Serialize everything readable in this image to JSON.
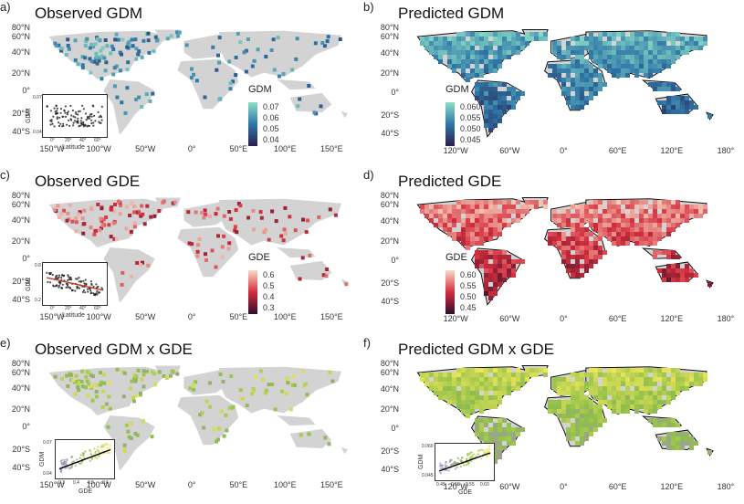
{
  "colors": {
    "land": "#d3d3d3",
    "gdm_low": "#2a1f4a",
    "gdm_mid": "#2f76a8",
    "gdm_high": "#8de0c7",
    "gde_low": "#2c0f2e",
    "gde_mid": "#d42d3c",
    "gde_high": "#f9d9c6",
    "biv_a": "#f2e85b",
    "biv_b": "#8fbf4a",
    "biv_c": "#a78acd",
    "outline": "#111111"
  },
  "panels": [
    {
      "label": "a)",
      "title": "Observed GDM",
      "kind": "observed",
      "palette": "gdm",
      "lat_labels": [
        "80°N",
        "60°N",
        "40°N",
        "20°N",
        "0°",
        "20°S",
        "40°S"
      ],
      "lon_labels": [
        "150°W",
        "100°W",
        "50°W",
        "0°",
        "50°E",
        "100°E",
        "150°E"
      ],
      "legend": {
        "title": "GDM",
        "ticks": [
          "0.07",
          "0.06",
          "0.05",
          "0.04"
        ]
      },
      "inset": {
        "xlabel": "Latitude",
        "ylabel": "GDM",
        "xticks": [
          "0°",
          "20°",
          "40°",
          "60°"
        ],
        "yticks": [
          "0.07",
          "0.06",
          "0.05",
          "0.04"
        ]
      }
    },
    {
      "label": "b)",
      "title": "Predicted GDM",
      "kind": "predicted",
      "palette": "gdm",
      "lat_labels": [
        "80°N",
        "60°N",
        "40°N",
        "20°N",
        "0°",
        "20°S",
        "40°S"
      ],
      "lon_labels": [
        "120°W",
        "60°W",
        "0°",
        "60°E",
        "120°E",
        "180°"
      ],
      "legend": {
        "title": "GDM",
        "ticks": [
          "0.060",
          "0.055",
          "0.050",
          "0.045"
        ]
      }
    },
    {
      "label": "c)",
      "title": "Observed GDE",
      "kind": "observed",
      "palette": "gde",
      "lat_labels": [
        "80°N",
        "60°N",
        "40°N",
        "20°N",
        "0°",
        "20°S",
        "40°S"
      ],
      "lon_labels": [
        "150°W",
        "100°W",
        "50°W",
        "0°",
        "50°E",
        "100°E",
        "150°E"
      ],
      "legend": {
        "title": "GDE",
        "ticks": [
          "0.6",
          "0.5",
          "0.4",
          "0.3"
        ]
      },
      "inset": {
        "xlabel": "Latitude",
        "ylabel": "GDE",
        "xticks": [
          "0°",
          "20°",
          "40°",
          "60°"
        ],
        "yticks": [
          "0.8",
          "0.6",
          "0.4",
          "0.2"
        ]
      }
    },
    {
      "label": "d)",
      "title": "Predicted GDE",
      "kind": "predicted",
      "palette": "gde",
      "lat_labels": [
        "80°N",
        "60°N",
        "40°N",
        "20°N",
        "0°",
        "20°S",
        "40°S"
      ],
      "lon_labels": [
        "120°W",
        "60°W",
        "0°",
        "60°E",
        "120°E",
        "180°"
      ],
      "legend": {
        "title": "GDE",
        "ticks": [
          "0.60",
          "0.55",
          "0.50",
          "0.45"
        ]
      }
    },
    {
      "label": "e)",
      "title": "Observed GDM x GDE",
      "kind": "observed",
      "palette": "biv",
      "lat_labels": [
        "80°N",
        "60°N",
        "40°N",
        "20°N",
        "0°",
        "20°S",
        "40°S"
      ],
      "lon_labels": [
        "150°W",
        "100°W",
        "50°W",
        "0°",
        "50°E",
        "100°E",
        "150°E"
      ],
      "inset": {
        "xlabel": "GDE",
        "ylabel": "GDM",
        "xticks": [
          "0.3",
          "0.4",
          "0.5",
          "0.6"
        ],
        "yticks": [
          "0.07",
          "0.06",
          "0.05",
          "0.04"
        ]
      }
    },
    {
      "label": "f)",
      "title": "Predicted GDM x GDE",
      "kind": "predicted",
      "palette": "biv",
      "lat_labels": [
        "80°N",
        "60°N",
        "40°N",
        "20°N",
        "0°",
        "20°S",
        "40°S"
      ],
      "lon_labels": [
        "120°W",
        "60°W",
        "0°",
        "60°E",
        "120°E",
        "180°"
      ],
      "inset": {
        "xlabel": "GDE",
        "ylabel": "GDM",
        "xticks": [
          "0.45",
          "0.50",
          "0.55",
          "0.60"
        ],
        "yticks": [
          "0.060",
          "0.055",
          "0.050",
          "0.045"
        ]
      }
    }
  ]
}
